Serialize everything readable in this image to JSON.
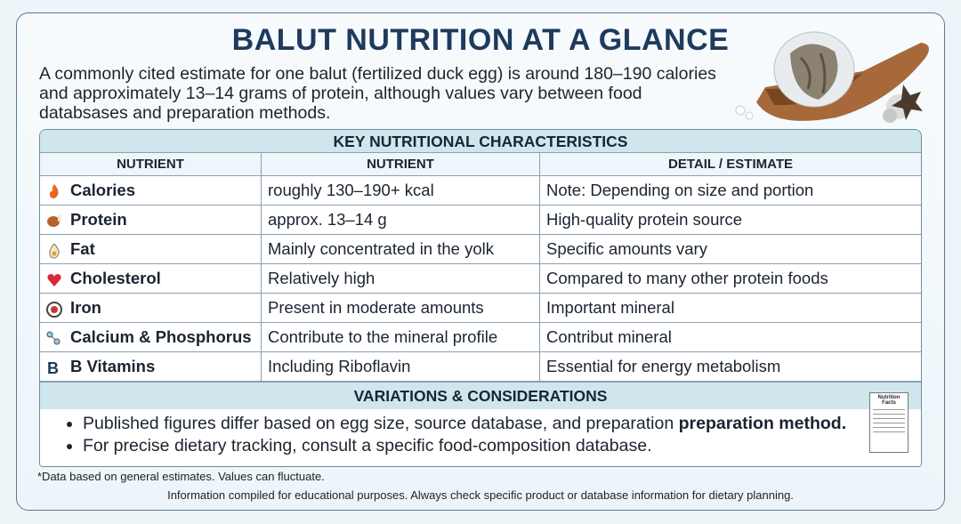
{
  "header": {
    "title": "BALUT NUTRITION AT A GLANCE",
    "intro": [
      "A commonly cited estimate for one balut (fertilized duck egg) is around 180–190 calories",
      "and approximately 13–14 grams of protein, although values vary between food",
      "databsases and preparation methods."
    ]
  },
  "table": {
    "title": "KEY NUTRITIONAL CHARACTERISTICS",
    "columns": [
      "NUTRIENT",
      "NUTRIENT",
      "DETAIL / ESTIMATE"
    ],
    "rows": [
      [
        "Calories",
        "roughly 130–190+ kcal",
        "Note: Depending on size and portion"
      ],
      [
        "Protein",
        "approx. 13–14 g",
        "High-quality protein source"
      ],
      [
        "Fat",
        "Mainly concentrated in the yolk",
        "Specific amounts vary"
      ],
      [
        "Cholesterol",
        "Relatively high",
        "Compared to many other protein foods"
      ],
      [
        "Iron",
        "Present in moderate amounts",
        "Important mineral"
      ],
      [
        "Calcium & Phosphorus",
        "Contribute to the mineral profile",
        "Contribut mineral"
      ],
      [
        "B Vitamins",
        "Including Riboflavin",
        "Essential for energy metabolism"
      ]
    ]
  },
  "considerations": {
    "title": "VARIATIONS & CONSIDERATIONS",
    "bullets": [
      {
        "text": "Published figures differ based on egg size, source database, and preparation ",
        "bold": "preparation method."
      },
      {
        "text": "For precise dietary tracking, consult a specific food-composition database."
      }
    ]
  },
  "icon_label": "Nutrition Facts",
  "footnote": "*Data based on general estimates. Values can fluctuate.",
  "disclaimer": "Information compiled for educational purposes. Always check specific product or database information for dietary planning."
}
